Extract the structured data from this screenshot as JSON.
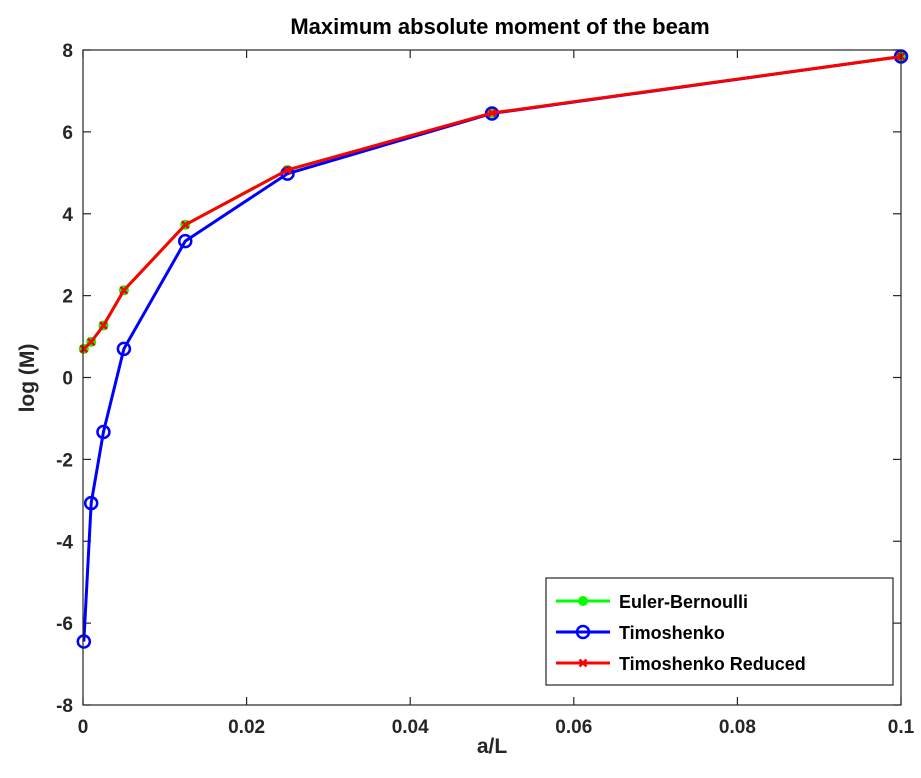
{
  "chart_data": {
    "type": "line",
    "title": "Maximum absolute moment of the beam",
    "xlabel": "a/L",
    "ylabel": "log (M)",
    "xlim": [
      0,
      0.1
    ],
    "ylim": [
      -8,
      8
    ],
    "xticks": [
      0,
      0.02,
      0.04,
      0.06,
      0.08,
      0.1
    ],
    "xtick_labels": [
      "0",
      "0.02",
      "0.04",
      "0.06",
      "0.08",
      "0.1"
    ],
    "yticks": [
      -8,
      -6,
      -4,
      -2,
      0,
      2,
      4,
      6,
      8
    ],
    "ytick_labels": [
      "-8",
      "-6",
      "-4",
      "-2",
      "0",
      "2",
      "4",
      "6",
      "8"
    ],
    "grid": false,
    "legend_position": "bottom-right",
    "series": [
      {
        "name": "Euler-Bernoulli",
        "color": "#00ff00",
        "marker": "dot",
        "x": [
          0.0001,
          0.001,
          0.0025,
          0.005,
          0.0125,
          0.025,
          0.05,
          0.1
        ],
        "y": [
          0.7,
          0.87,
          1.27,
          2.13,
          3.73,
          5.07,
          6.46,
          7.84
        ]
      },
      {
        "name": "Timoshenko",
        "color": "#0000ff",
        "marker": "circle",
        "x": [
          0.0001,
          0.001,
          0.0025,
          0.005,
          0.0125,
          0.025,
          0.05,
          0.1
        ],
        "y": [
          -6.45,
          -3.07,
          -1.33,
          0.7,
          3.33,
          4.98,
          6.45,
          7.84
        ]
      },
      {
        "name": "Timoshenko Reduced",
        "color": "#ff0000",
        "marker": "x",
        "x": [
          0.0001,
          0.001,
          0.0025,
          0.005,
          0.0125,
          0.025,
          0.05,
          0.1
        ],
        "y": [
          0.7,
          0.87,
          1.27,
          2.13,
          3.73,
          5.07,
          6.46,
          7.84
        ]
      }
    ]
  }
}
